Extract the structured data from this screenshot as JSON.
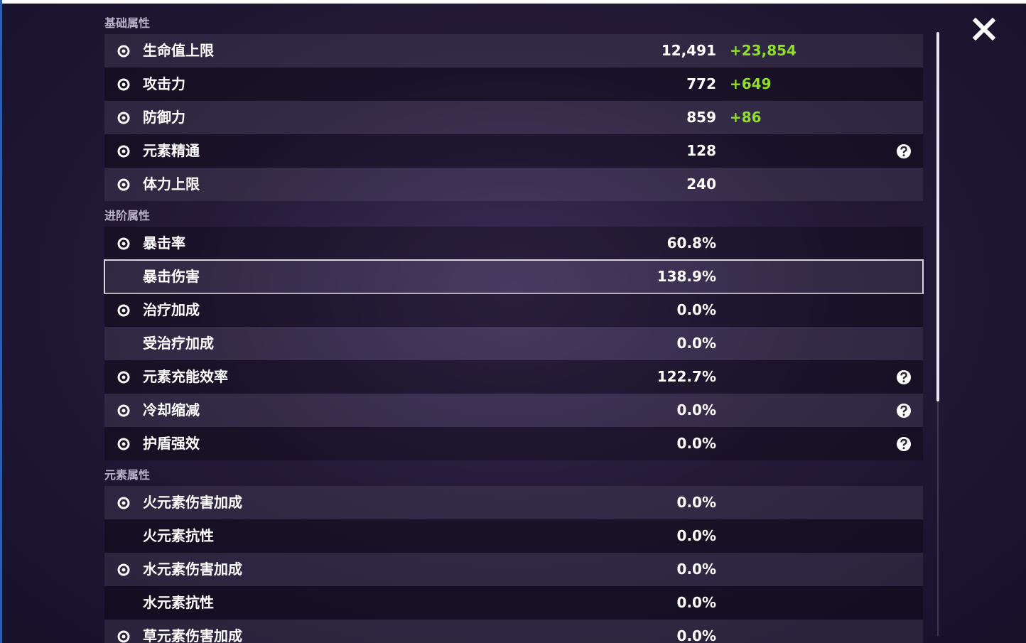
{
  "sections": [
    {
      "title": "基础属性",
      "rows": [
        {
          "label": "生命值上限",
          "value": "12,491",
          "bonus": "+23,854",
          "icon": true
        },
        {
          "label": "攻击力",
          "value": "772",
          "bonus": "+649",
          "icon": true
        },
        {
          "label": "防御力",
          "value": "859",
          "bonus": "+86",
          "icon": true
        },
        {
          "label": "元素精通",
          "value": "128",
          "icon": true,
          "help": true
        },
        {
          "label": "体力上限",
          "value": "240",
          "icon": true
        }
      ]
    },
    {
      "title": "进阶属性",
      "rows": [
        {
          "label": "暴击率",
          "value": "60.8%",
          "icon": true
        },
        {
          "label": "暴击伤害",
          "value": "138.9%",
          "selected": true
        },
        {
          "label": "治疗加成",
          "value": "0.0%",
          "icon": true
        },
        {
          "label": "受治疗加成",
          "value": "0.0%"
        },
        {
          "label": "元素充能效率",
          "value": "122.7%",
          "icon": true,
          "help": true
        },
        {
          "label": "冷却缩减",
          "value": "0.0%",
          "icon": true,
          "help": true
        },
        {
          "label": "护盾强效",
          "value": "0.0%",
          "icon": true,
          "help": true
        }
      ]
    },
    {
      "title": "元素属性",
      "rows": [
        {
          "label": "火元素伤害加成",
          "value": "0.0%",
          "icon": true
        },
        {
          "label": "火元素抗性",
          "value": "0.0%"
        },
        {
          "label": "水元素伤害加成",
          "value": "0.0%",
          "icon": true
        },
        {
          "label": "水元素抗性",
          "value": "0.0%"
        },
        {
          "label": "草元素伤害加成",
          "value": "0.0%",
          "icon": true
        }
      ]
    }
  ]
}
